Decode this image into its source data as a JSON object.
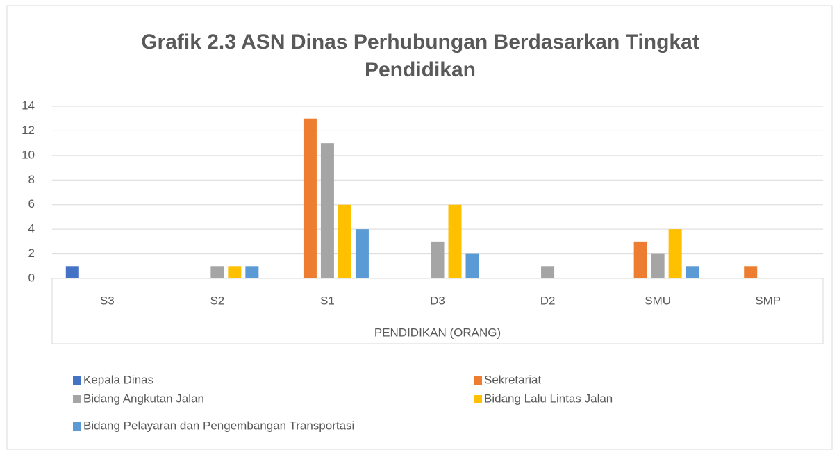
{
  "chart_data": {
    "type": "bar",
    "title_lines": [
      "Grafik 2.3 ASN Dinas Perhubungan Berdasarkan Tingkat",
      "Pendidikan"
    ],
    "x_label": "PENDIDIKAN (ORANG)",
    "categories": [
      "S3",
      "S2",
      "S1",
      "D3",
      "D2",
      "SMU",
      "SMP"
    ],
    "series": [
      {
        "name": "Kepala Dinas",
        "color": "#4472c4",
        "values": [
          1,
          0,
          0,
          0,
          0,
          0,
          0
        ]
      },
      {
        "name": "Sekretariat",
        "color": "#ed7d31",
        "values": [
          0,
          0,
          13,
          0,
          0,
          3,
          1
        ]
      },
      {
        "name": "Bidang Angkutan Jalan",
        "color": "#a5a5a5",
        "values": [
          0,
          1,
          11,
          3,
          1,
          2,
          0
        ]
      },
      {
        "name": "Bidang Lalu Lintas Jalan",
        "color": "#ffc000",
        "values": [
          0,
          1,
          6,
          6,
          0,
          4,
          0
        ]
      },
      {
        "name": "Bidang Pelayaran dan Pengembangan Transportasi",
        "color": "#5b9bd5",
        "values": [
          0,
          1,
          4,
          2,
          0,
          1,
          0
        ]
      }
    ],
    "ylim": [
      0,
      14
    ],
    "yticks": [
      0,
      2,
      4,
      6,
      8,
      10,
      12,
      14
    ],
    "grid": true,
    "legend": "bottom"
  }
}
